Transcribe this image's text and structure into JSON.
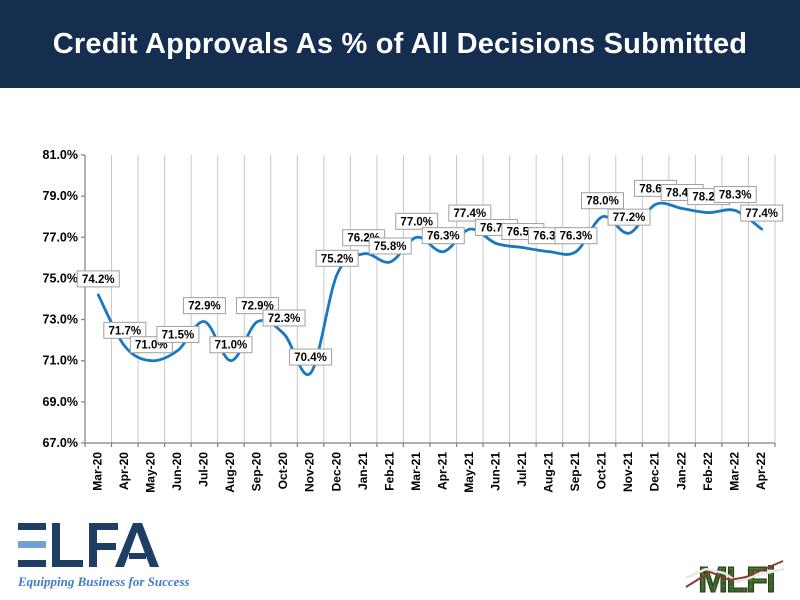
{
  "title": "Credit Approvals As % of All Decisions Submitted",
  "chart_data": {
    "type": "line",
    "title": "Credit Approvals As % of All Decisions Submitted",
    "categories": [
      "Mar-20",
      "Apr-20",
      "May-20",
      "Jun-20",
      "Jul-20",
      "Aug-20",
      "Sep-20",
      "Oct-20",
      "Nov-20",
      "Dec-20",
      "Jan-21",
      "Feb-21",
      "Mar-21",
      "Apr-21",
      "May-21",
      "Jun-21",
      "Jul-21",
      "Aug-21",
      "Sep-21",
      "Oct-21",
      "Nov-21",
      "Dec-21",
      "Jan-22",
      "Feb-22",
      "Mar-22",
      "Apr-22"
    ],
    "values": [
      74.2,
      71.7,
      71.0,
      71.5,
      72.9,
      71.0,
      72.9,
      72.3,
      70.4,
      75.2,
      76.2,
      75.8,
      77.0,
      76.3,
      77.4,
      76.7,
      76.5,
      76.3,
      76.3,
      78.0,
      77.2,
      78.6,
      78.4,
      78.2,
      78.3,
      77.4
    ],
    "point_labels": [
      "74.2%",
      "71.7%",
      "71.0%",
      "71.5%",
      "72.9%",
      "71.0%",
      "72.9%",
      "72.3%",
      "70.4%",
      "75.2%",
      "76.2%",
      "75.8%",
      "77.0%",
      "76.3%",
      "77.4%",
      "76.7%",
      "76.5%",
      "76.3%",
      "76.3%",
      "78.0%",
      "77.2%",
      "78.6%",
      "78.4%",
      "78.2%",
      "78.3%",
      "77.4%"
    ],
    "ytick_values": [
      81,
      79,
      77,
      75,
      73,
      71,
      69,
      67
    ],
    "ytick_labels": [
      "81.0%",
      "79.0%",
      "77.0%",
      "75.0%",
      "73.0%",
      "71.0%",
      "69.0%",
      "67.0%"
    ],
    "ylim": [
      67,
      81
    ],
    "xlabel": "",
    "ylabel": "",
    "grid": "vertical-only",
    "smooth": true,
    "legend": "none",
    "line_color": "#1878C2",
    "grid_color": "#C8C8C8",
    "axis_color": "#808080",
    "label_box_border": "#A0A0A0"
  },
  "footer": {
    "elfa_logo_text": "ELFA",
    "elfa_tagline": "Equipping Business for Success",
    "mlfi_logo_text": "MLFi"
  },
  "colors": {
    "title_band": "#152E4F",
    "elfa_navy": "#1F3E63",
    "elfa_lightblue": "#6FA3D8",
    "mlfi_green": "#3A5F26"
  }
}
